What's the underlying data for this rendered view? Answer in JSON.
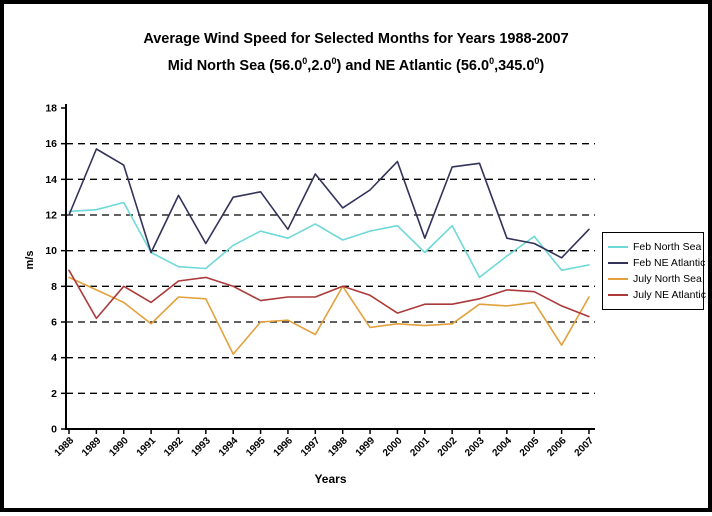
{
  "title": {
    "line1": "Average Wind Speed for Selected Months for Years 1988-2007",
    "line2_parts": [
      "Mid North Sea (56.0",
      "0",
      ",2.0",
      "0",
      ") and NE Atlantic (56.0",
      "0",
      ",345.0",
      "0",
      ")"
    ]
  },
  "axes": {
    "x_label": "Years",
    "y_label": "m/s"
  },
  "chart_data": {
    "type": "line",
    "title": "Average Wind Speed for Selected Months for Years 1988-2007",
    "subtitle": "Mid North Sea (56.0,2.0) and NE Atlantic (56.0,345.0)",
    "xlabel": "Years",
    "ylabel": "m/s",
    "ylim": [
      0,
      18
    ],
    "ytick_step": 2,
    "grid": "horizontal-dashed-black",
    "legend_position": "right",
    "categories": [
      "1988",
      "1989",
      "1990",
      "1991",
      "1992",
      "1993",
      "1994",
      "1995",
      "1996",
      "1997",
      "1998",
      "1999",
      "2000",
      "2001",
      "2002",
      "2003",
      "2004",
      "2005",
      "2006",
      "2007"
    ],
    "series": [
      {
        "name": "Feb North Sea",
        "color": "#6FD8D8",
        "values": [
          12.2,
          12.3,
          12.7,
          9.9,
          9.1,
          9.0,
          10.3,
          11.1,
          10.7,
          11.5,
          10.6,
          11.1,
          11.4,
          9.9,
          11.4,
          8.5,
          9.7,
          10.8,
          8.9,
          9.2
        ]
      },
      {
        "name": "Feb NE Atlantic",
        "color": "#32325A",
        "values": [
          12.0,
          15.7,
          14.8,
          9.9,
          13.1,
          10.4,
          13.0,
          13.3,
          11.2,
          14.3,
          12.4,
          13.4,
          15.0,
          10.7,
          14.7,
          14.9,
          10.7,
          10.4,
          9.6,
          11.2
        ]
      },
      {
        "name": "July North Sea",
        "color": "#E2A13D",
        "values": [
          8.5,
          7.8,
          7.1,
          5.9,
          7.4,
          7.3,
          4.2,
          6.0,
          6.1,
          5.3,
          8.0,
          5.7,
          5.9,
          5.8,
          5.9,
          7.0,
          6.9,
          7.1,
          4.7,
          7.4
        ]
      },
      {
        "name": "July NE Atlantic",
        "color": "#AC3A3A",
        "values": [
          8.9,
          6.2,
          8.0,
          7.1,
          8.3,
          8.5,
          8.0,
          7.2,
          7.4,
          7.4,
          8.0,
          7.5,
          6.5,
          7.0,
          7.0,
          7.3,
          7.8,
          7.7,
          6.9,
          6.3
        ]
      }
    ]
  }
}
